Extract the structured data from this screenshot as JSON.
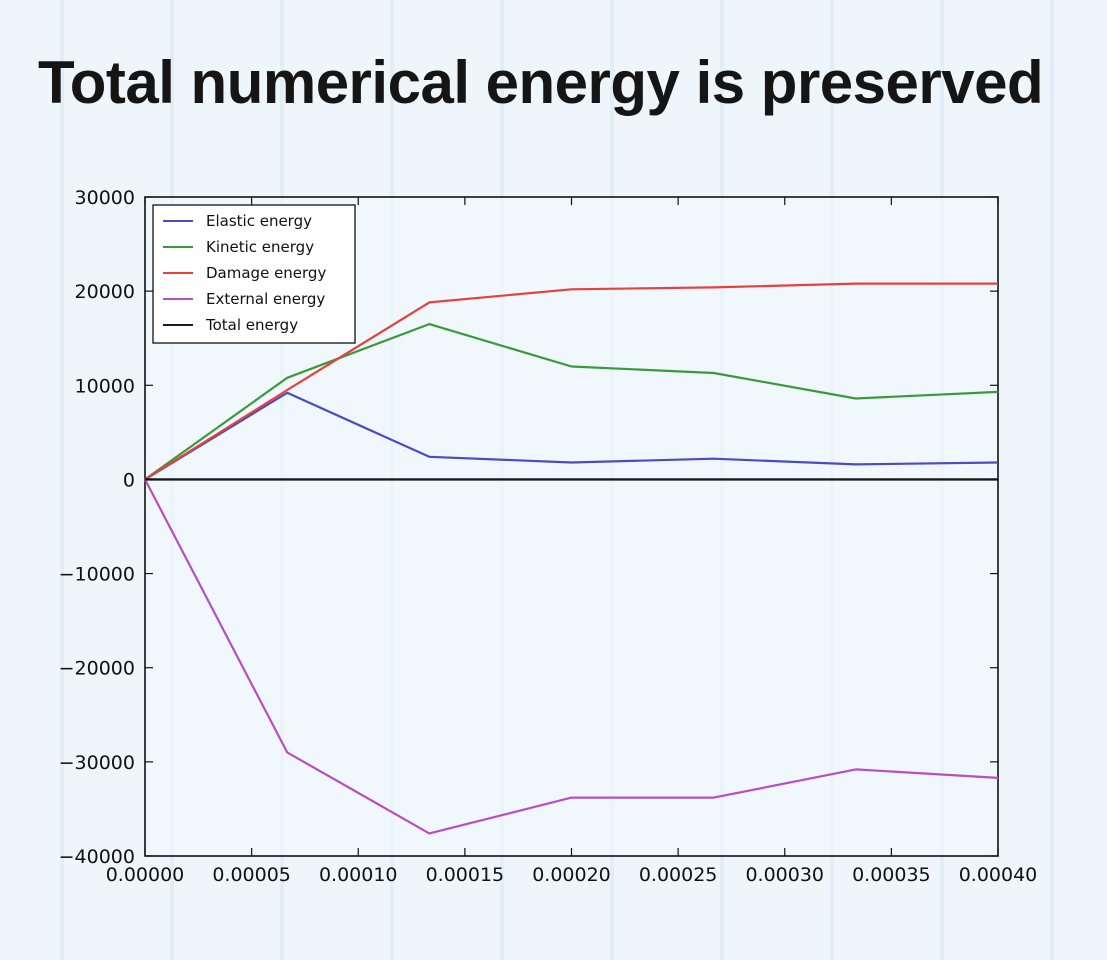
{
  "slide": {
    "title": "Total numerical energy is preserved"
  },
  "chart_data": {
    "type": "line",
    "x": [
      0,
      6.67e-05,
      0.0001333,
      0.0002,
      0.0002667,
      0.0003333,
      0.0004
    ],
    "series": [
      {
        "name": "Elastic energy",
        "color": "#4b4bc4",
        "values": [
          0,
          9200,
          2400,
          1800,
          2200,
          1600,
          1800
        ]
      },
      {
        "name": "Kinetic energy",
        "color": "#3a9a3a",
        "values": [
          0,
          10800,
          16500,
          12000,
          11300,
          8600,
          9300
        ]
      },
      {
        "name": "Damage energy",
        "color": "#e8403a",
        "values": [
          0,
          9500,
          18800,
          20200,
          20400,
          20800,
          20800
        ]
      },
      {
        "name": "External energy",
        "color": "#b84ec4",
        "values": [
          0,
          -29000,
          -37600,
          -33800,
          -33800,
          -30800,
          -31700
        ]
      },
      {
        "name": "Total energy",
        "color": "#1a1a1a",
        "values": [
          0,
          0,
          0,
          0,
          0,
          0,
          0
        ]
      }
    ],
    "xlim": [
      0,
      0.0004
    ],
    "ylim": [
      -40000,
      30000
    ],
    "xticks": [
      "0.00000",
      "0.00005",
      "0.00010",
      "0.00015",
      "0.00020",
      "0.00025",
      "0.00030",
      "0.00035",
      "0.00040"
    ],
    "yticks": [
      "30000",
      "20000",
      "10000",
      "0",
      "−10000",
      "−20000",
      "−30000",
      "−40000"
    ],
    "legend": "top-left",
    "grid": false
  }
}
